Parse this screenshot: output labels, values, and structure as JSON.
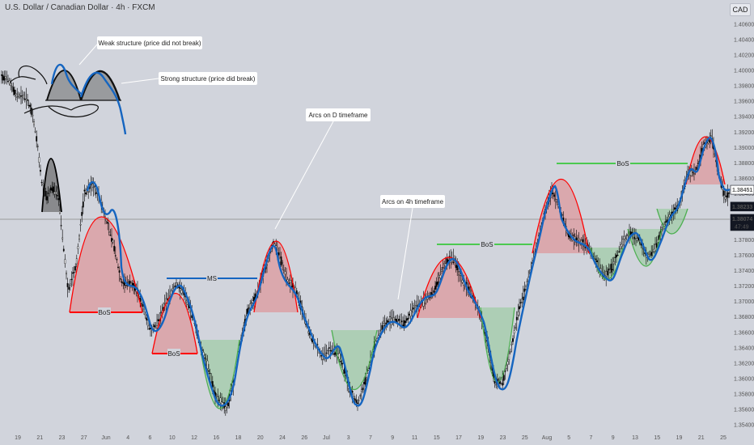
{
  "title": "U.S. Dollar / Canadian Dollar · 4h · FXCM",
  "currency": "CAD",
  "chart_data": {
    "type": "candlestick",
    "instrument": "USD/CAD",
    "timeframe": "4h",
    "y_ticks": [
      "1.40600",
      "1.40400",
      "1.40200",
      "1.40000",
      "1.39800",
      "1.39600",
      "1.39400",
      "1.39200",
      "1.39000",
      "1.38800",
      "1.38600",
      "1.38400",
      "1.38200",
      "1.38000",
      "1.37800",
      "1.37600",
      "1.37400",
      "1.37200",
      "1.37000",
      "1.36800",
      "1.36600",
      "1.36400",
      "1.36200",
      "1.36000",
      "1.35800",
      "1.35600",
      "1.35400"
    ],
    "x_ticks": [
      "19",
      "21",
      "23",
      "27",
      "Jun",
      "4",
      "6",
      "10",
      "12",
      "16",
      "18",
      "20",
      "24",
      "26",
      "Jul",
      "3",
      "7",
      "9",
      "11",
      "15",
      "17",
      "19",
      "23",
      "25",
      "Aug",
      "5",
      "7",
      "9",
      "13",
      "15",
      "19",
      "21",
      "25"
    ],
    "price_labels": [
      {
        "text": "1.38451",
        "value": 1.38451
      },
      {
        "text": "1.38233",
        "value": 1.38233
      },
      {
        "text": "1.38074",
        "value": 1.38074,
        "countdown": "47:49"
      }
    ],
    "annotations": {
      "weak": "Weak structure (price did not break)",
      "strong": "Strong structure (price did break)",
      "arcs_d": "Arcs on D timeframe",
      "arcs_4h": "Arcs on 4h timeframe",
      "bos": "BoS",
      "ms": "MS"
    },
    "colors": {
      "red_arc": "#ff0000",
      "red_fill": "#e57373",
      "green_arc": "#4caf50",
      "green_fill": "#81c784",
      "blue_curve": "#1565c0",
      "background": "#d1d4dc"
    }
  }
}
